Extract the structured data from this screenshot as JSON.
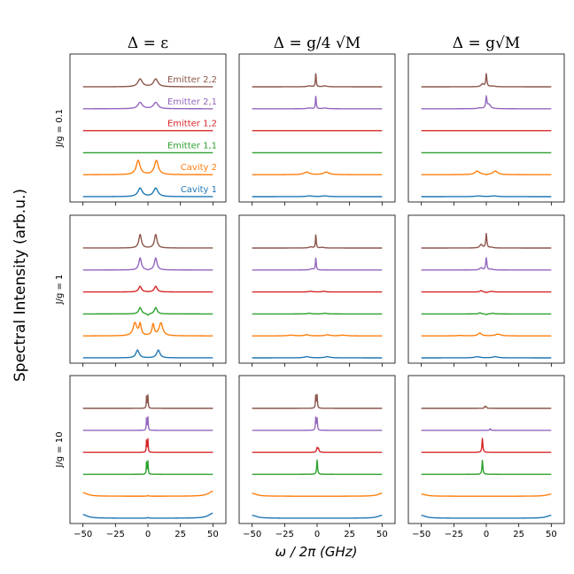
{
  "figure": {
    "ylabel": "Spectral Intensity (arb.u.)",
    "xlabel": "ω / 2π (GHz)"
  },
  "chart_data": {
    "type": "line",
    "column_titles": [
      "Δ = ε",
      "Δ = g/4 √M",
      "Δ = g√M"
    ],
    "row_labels": [
      "J/g = 0.1",
      "J/g = 1",
      "J/g = 10"
    ],
    "xlim": [
      -60,
      60
    ],
    "xticks": [
      -50,
      -25,
      0,
      25,
      50
    ],
    "xtick_labels": [
      "−50",
      "−25",
      "0",
      "25",
      "50"
    ],
    "grid": false,
    "legend_location": "in-panel labels, top-left panel",
    "series": [
      {
        "name": "Cavity 1",
        "color": "#1f77b4"
      },
      {
        "name": "Cavity 2",
        "color": "#ff7f0e"
      },
      {
        "name": "Emitter 1,1",
        "color": "#2ca02c"
      },
      {
        "name": "Emitter 1,2",
        "color": "#d62728"
      },
      {
        "name": "Emitter 2,1",
        "color": "#9467bd"
      },
      {
        "name": "Emitter 2,2",
        "color": "#8c564b"
      }
    ],
    "panels": [
      {
        "row": 0,
        "col": 0,
        "traces": [
          [
            [
              -6,
              0.6,
              2
            ],
            [
              6,
              0.6,
              2
            ]
          ],
          [
            [
              -7.5,
              1.0,
              1.8
            ],
            [
              6.5,
              1.0,
              1.8
            ]
          ],
          [],
          [],
          [
            [
              -6,
              0.45,
              2
            ],
            [
              6,
              0.45,
              2
            ]
          ],
          [
            [
              -6,
              0.55,
              2
            ],
            [
              6,
              0.55,
              2
            ]
          ]
        ]
      },
      {
        "row": 0,
        "col": 1,
        "traces": [
          [
            [
              -6,
              0.05,
              3
            ],
            [
              6,
              0.05,
              3
            ]
          ],
          [
            [
              -8,
              0.18,
              2.5
            ],
            [
              7,
              0.18,
              2.5
            ]
          ],
          [],
          [],
          [
            [
              -1,
              0.95,
              0.35
            ],
            [
              -6,
              0.05,
              2
            ],
            [
              6,
              0.05,
              2
            ]
          ],
          [
            [
              -1,
              1.0,
              0.35
            ],
            [
              -6,
              0.06,
              2
            ],
            [
              6,
              0.06,
              2
            ]
          ]
        ]
      },
      {
        "row": 0,
        "col": 2,
        "traces": [
          [
            [
              -6,
              0.05,
              3
            ],
            [
              6,
              0.05,
              3
            ]
          ],
          [
            [
              -7,
              0.25,
              2.2
            ],
            [
              7,
              0.25,
              2.2
            ],
            [
              0,
              -0.05,
              0.6
            ]
          ],
          [],
          [],
          [
            [
              0,
              0.8,
              0.5
            ],
            [
              2,
              0.3,
              1.5
            ],
            [
              -5,
              0.05,
              2
            ]
          ],
          [
            [
              0,
              0.9,
              0.5
            ],
            [
              -3,
              0.2,
              1.2
            ],
            [
              5,
              0.05,
              2
            ]
          ]
        ]
      },
      {
        "row": 1,
        "col": 0,
        "traces": [
          [
            [
              -8,
              0.55,
              1.5
            ],
            [
              8,
              0.55,
              1.5
            ]
          ],
          [
            [
              -10,
              0.9,
              1.7
            ],
            [
              -6,
              0.8,
              1.0
            ],
            [
              4,
              0.8,
              1.0
            ],
            [
              10,
              0.9,
              1.7
            ]
          ],
          [
            [
              -6,
              0.45,
              1.3
            ],
            [
              6,
              0.45,
              1.3
            ],
            [
              0,
              -0.12,
              1.0
            ]
          ],
          [
            [
              -6,
              0.4,
              1.3
            ],
            [
              6,
              0.4,
              1.3
            ]
          ],
          [
            [
              -6,
              0.85,
              1.2
            ],
            [
              6,
              0.85,
              1.2
            ],
            [
              0,
              -0.05,
              1
            ]
          ],
          [
            [
              -6,
              0.95,
              1.2
            ],
            [
              6,
              0.95,
              1.2
            ]
          ]
        ]
      },
      {
        "row": 1,
        "col": 1,
        "traces": [
          [
            [
              -8,
              0.08,
              2.5
            ],
            [
              8,
              0.08,
              2.5
            ]
          ],
          [
            [
              -20,
              0.05,
              3
            ],
            [
              -8,
              0.08,
              2
            ],
            [
              8,
              0.08,
              2
            ],
            [
              20,
              0.05,
              3
            ]
          ],
          [
            [
              -6,
              0.05,
              1.5
            ],
            [
              6,
              0.05,
              1.5
            ]
          ],
          [
            [
              -5,
              0.05,
              1.5
            ],
            [
              5,
              0.05,
              1.5
            ]
          ],
          [
            [
              -1,
              0.9,
              0.35
            ],
            [
              -4,
              0.08,
              1.5
            ]
          ],
          [
            [
              -1,
              1.0,
              0.35
            ],
            [
              -5,
              0.08,
              1.5
            ],
            [
              4,
              0.05,
              1.5
            ]
          ]
        ]
      },
      {
        "row": 1,
        "col": 2,
        "traces": [
          [
            [
              -7,
              0.08,
              2.5
            ],
            [
              7,
              0.08,
              2.5
            ]
          ],
          [
            [
              -5,
              0.2,
              1.6
            ],
            [
              9,
              0.12,
              2.5
            ],
            [
              -20,
              0.03,
              3
            ]
          ],
          [
            [
              -5,
              0.08,
              1
            ],
            [
              0,
              -0.05,
              0.8
            ],
            [
              5,
              0.05,
              1.5
            ]
          ],
          [
            [
              -4,
              0.1,
              1
            ],
            [
              0,
              -0.05,
              0.8
            ],
            [
              4,
              0.04,
              1.5
            ]
          ],
          [
            [
              0,
              0.85,
              0.5
            ],
            [
              -4,
              0.15,
              1.2
            ],
            [
              4,
              0.05,
              1.5
            ]
          ],
          [
            [
              0,
              1.0,
              0.5
            ],
            [
              -4,
              0.25,
              1.2
            ],
            [
              4,
              0.05,
              1.5
            ]
          ]
        ]
      },
      {
        "row": 2,
        "col": 0,
        "traces": [
          [
            [
              -50,
              0.25,
              4
            ],
            [
              50,
              0.35,
              4
            ],
            [
              0,
              0.05,
              0.5
            ]
          ],
          [
            [
              -50,
              0.25,
              4
            ],
            [
              50,
              0.35,
              4
            ],
            [
              0,
              0.05,
              0.5
            ]
          ],
          [
            [
              -1,
              1.0,
              0.25
            ],
            [
              0,
              0.9,
              0.25
            ]
          ],
          [
            [
              -1,
              1.0,
              0.25
            ],
            [
              0,
              0.9,
              0.25
            ]
          ],
          [
            [
              -1,
              1.0,
              0.25
            ],
            [
              0,
              0.9,
              0.25
            ]
          ],
          [
            [
              -1,
              1.0,
              0.25
            ],
            [
              0,
              0.9,
              0.25
            ]
          ]
        ]
      },
      {
        "row": 2,
        "col": 1,
        "traces": [
          [
            [
              -50,
              0.2,
              4
            ],
            [
              50,
              0.2,
              4
            ]
          ],
          [
            [
              -50,
              0.2,
              4
            ],
            [
              50,
              0.2,
              4
            ]
          ],
          [
            [
              0,
              1.0,
              0.4
            ]
          ],
          [
            [
              0,
              0.3,
              0.5
            ],
            [
              1,
              0.25,
              0.5
            ]
          ],
          [
            [
              -1,
              1.0,
              0.3
            ],
            [
              0,
              0.8,
              0.3
            ]
          ],
          [
            [
              -1,
              1.0,
              0.3
            ],
            [
              0,
              0.9,
              0.3
            ]
          ]
        ]
      },
      {
        "row": 2,
        "col": 2,
        "traces": [
          [
            [
              -50,
              0.2,
              4
            ],
            [
              50,
              0.2,
              4
            ]
          ],
          [
            [
              -50,
              0.15,
              4
            ],
            [
              50,
              0.15,
              4
            ]
          ],
          [
            [
              -3,
              1.0,
              0.4
            ]
          ],
          [
            [
              -3,
              1.0,
              0.4
            ]
          ],
          [
            [
              3,
              0.12,
              0.4
            ]
          ],
          [
            [
              -1,
              0.15,
              0.4
            ],
            [
              0,
              0.1,
              0.4
            ]
          ]
        ]
      }
    ]
  }
}
